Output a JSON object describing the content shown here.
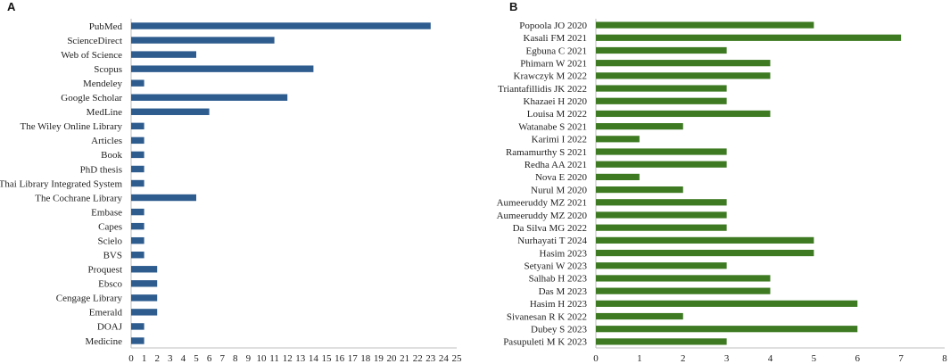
{
  "chart_data": [
    {
      "type": "bar",
      "orientation": "horizontal",
      "panel_label": "A",
      "color": "#2e5c8f",
      "categories": [
        "PubMed",
        "ScienceDirect",
        "Web of Science",
        "Scopus",
        "Mendeley",
        "Google Scholar",
        "MedLine",
        "The Wiley Online Library",
        "Articles",
        "Book",
        "PhD thesis",
        "Thai Library Integrated System",
        "The Cochrane Library",
        "Embase",
        "Capes",
        "Scielo",
        "BVS",
        "Proquest",
        "Ebsco",
        "Cengage Library",
        "Emerald",
        "DOAJ",
        "Medicine"
      ],
      "values": [
        23,
        11,
        5,
        14,
        1,
        12,
        6,
        1,
        1,
        1,
        1,
        1,
        5,
        1,
        1,
        1,
        1,
        2,
        2,
        2,
        2,
        1,
        1
      ],
      "xlim": [
        0,
        25
      ],
      "xticks": [
        "0",
        "1",
        "2",
        "3",
        "4",
        "5",
        "6",
        "7",
        "8",
        "9",
        "10",
        "11",
        "12",
        "13",
        "14",
        "15",
        "16",
        "17",
        "18",
        "19",
        "20",
        "21",
        "22",
        "23",
        "24",
        "25"
      ],
      "title": "",
      "xlabel": "",
      "ylabel": "",
      "grid": false
    },
    {
      "type": "bar",
      "orientation": "horizontal",
      "panel_label": "B",
      "color": "#3d7a22",
      "categories": [
        "Popoola JO 2020",
        "Kasali FM 2021",
        "Egbuna C 2021",
        "Phimarn W 2021",
        "Krawczyk M 2022",
        "Triantafillidis JK 2022",
        "Khazaei H 2020",
        "Louisa M 2022",
        "Watanabe S 2021",
        "Karimi I 2022",
        "Ramamurthy S 2021",
        "Redha AA 2021",
        "Nova E 2020",
        "Nurul M 2020",
        "Aumeeruddy MZ 2021",
        "Aumeeruddy MZ 2020",
        "Da Silva MG 2022",
        "Nurhayati T 2024",
        "Hasim 2023",
        "Setyani W 2023",
        "Salhab H 2023",
        "Das M 2023",
        "Hasim H 2023",
        "Sivanesan R K 2022",
        "Dubey S 2023",
        "Pasupuleti M K 2023"
      ],
      "values": [
        5,
        7,
        3,
        4,
        4,
        3,
        3,
        4,
        2,
        1,
        3,
        3,
        1,
        2,
        3,
        3,
        3,
        5,
        5,
        3,
        4,
        4,
        6,
        2,
        6,
        3
      ],
      "xlim": [
        0,
        8
      ],
      "xticks": [
        "0",
        "1",
        "2",
        "3",
        "4",
        "5",
        "6",
        "7",
        "8"
      ],
      "title": "",
      "xlabel": "",
      "ylabel": "",
      "grid": false
    }
  ]
}
